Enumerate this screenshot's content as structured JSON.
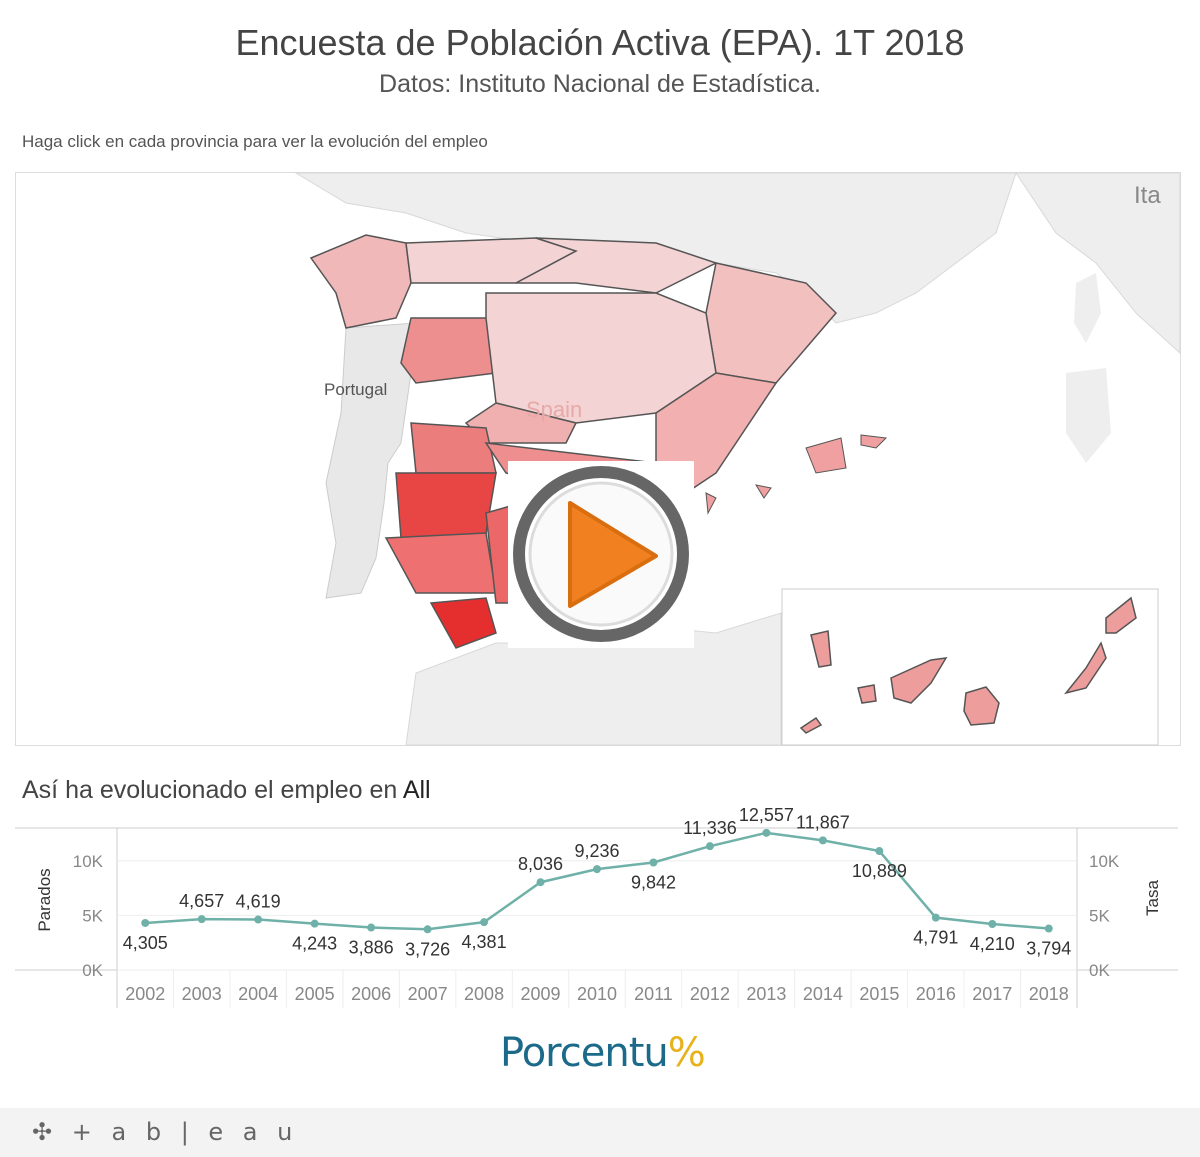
{
  "header": {
    "title": "Encuesta de Población Activa (EPA). 1T 2018",
    "subtitle": "Datos: Instituto Nacional de Estadística.",
    "instruction": "Haga click en cada provincia para ver la evolución del empleo"
  },
  "map": {
    "labels": {
      "portugal": "Portugal",
      "spain": "Spain",
      "italy": "Ita"
    },
    "colors": {
      "dark": "#e83a3a",
      "mid": "#f08a8a",
      "light": "#f3d3d3",
      "canary": "#ee9d9d",
      "background": "#eeeeee",
      "water": "#ffffff"
    }
  },
  "chart_title": {
    "prefix": "Así ha evolucionado el empleo en ",
    "selection": "All"
  },
  "chart_data": {
    "type": "line",
    "x": [
      "2002",
      "2003",
      "2004",
      "2005",
      "2006",
      "2007",
      "2008",
      "2009",
      "2010",
      "2011",
      "2012",
      "2013",
      "2014",
      "2015",
      "2016",
      "2017",
      "2018"
    ],
    "series": [
      {
        "values": [
          4305,
          4657,
          4619,
          4243,
          3886,
          3726,
          4381,
          8036,
          9236,
          9842,
          11336,
          12557,
          11867,
          10889,
          4791,
          4210,
          3794
        ]
      }
    ],
    "data_labels": [
      "4,305",
      "4,657",
      "4,619",
      "4,243",
      "3,886",
      "3,726",
      "4,381",
      "8,036",
      "9,236",
      "9,842",
      "11,336",
      "12,557",
      "11,867",
      "10,889",
      "4,791",
      "4,210",
      "3,794"
    ],
    "ylabel": "Parados",
    "ylabel_right": "Tasa",
    "yticks": [
      "0K",
      "5K",
      "10K"
    ],
    "ylim": [
      0,
      13000
    ],
    "color": "#6fb1a8",
    "grid": true
  },
  "logo": {
    "text": "Porcentu",
    "suffix": "%"
  },
  "footer": {
    "brand": "+ a b | e a u"
  }
}
